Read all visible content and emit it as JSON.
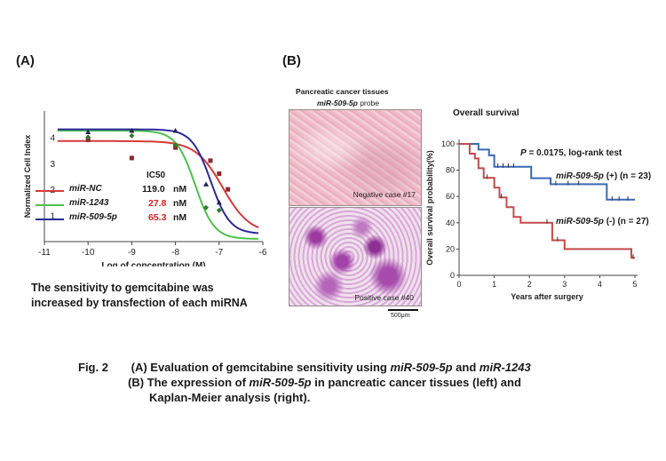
{
  "panelA": {
    "label": "(A)",
    "ylabel": "Normalized Cell Index",
    "xlabel": "Log of concentration (M)",
    "ic50_header": "IC50",
    "legend": [
      {
        "name": "miR-NC",
        "value": "119.0",
        "unit": "nM",
        "color": "#d63a3a",
        "value_color": "#1a1a1a"
      },
      {
        "name": "miR-1243",
        "value": "27.8",
        "unit": "nM",
        "color": "#4cc24c",
        "value_color": "#d62020"
      },
      {
        "name": "miR-509-5p",
        "value": "65.3",
        "unit": "nM",
        "color": "#2a2a9a",
        "value_color": "#d62020"
      }
    ],
    "note_line1": "The sensitivity to gemcitabine was",
    "note_line2": "increased by transfection of each miRNA"
  },
  "panelB": {
    "label": "(B)",
    "tissue_title": "Pancreatic cancer tissues",
    "probe_name": "miR-509-5p",
    "probe_suffix": "probe",
    "negative_label": "Negative case #17",
    "positive_label": "Positive case #40",
    "scale_bar": "500μm",
    "survival_title": "Overall survival",
    "pvalue_p": "P",
    "pvalue_rest": "= 0.0175, log-rank test",
    "km_ylabel": "Overall survival probability(%)",
    "km_xlabel": "Years after surgery",
    "group_pos_name": "miR-509-5p",
    "group_pos_rest": "(+) (n = 23)",
    "group_neg_name": "miR-509-5p",
    "group_neg_rest": "(-) (n = 27)"
  },
  "caption": {
    "fig": "Fig. 2",
    "a_prefix": "(A) Evaluation of gemcitabine sensitivity using",
    "a_m1": "miR-509-5p",
    "a_and": "and",
    "a_m2": "miR-1243",
    "b_prefix": "(B) The expression of",
    "b_m": "miR-509-5p",
    "b_rest": "in pancreatic cancer tissues (left) and",
    "b_line2": "Kaplan-Meier analysis (right)."
  },
  "chart_data": [
    {
      "type": "line",
      "x_axis": {
        "label": "Log of concentration (M)",
        "range": [
          -11,
          -6
        ],
        "ticks": [
          -11,
          -10,
          -9,
          -8,
          -7,
          -6
        ]
      },
      "y_axis": {
        "label": "Normalized Cell Index",
        "range": [
          0,
          5
        ],
        "ticks": [
          1,
          2,
          3,
          4
        ]
      },
      "series": [
        {
          "name": "miR-NC",
          "color": "#d63a3a",
          "marker": "square",
          "curve": {
            "top": 3.85,
            "bottom": 0.3,
            "log_ic50": -6.92,
            "hill": 1.4
          },
          "points": [
            {
              "x": -10,
              "y": 3.9
            },
            {
              "x": -9,
              "y": 3.2
            },
            {
              "x": -8,
              "y": 3.6
            },
            {
              "x": -7.2,
              "y": 3.1
            },
            {
              "x": -7,
              "y": 2.6
            },
            {
              "x": -6.8,
              "y": 2.0
            }
          ]
        },
        {
          "name": "miR-1243",
          "color": "#4cc24c",
          "marker": "diamond",
          "curve": {
            "top": 4.25,
            "bottom": 0.1,
            "log_ic50": -7.55,
            "hill": 2.0
          },
          "points": [
            {
              "x": -10,
              "y": 4.0
            },
            {
              "x": -9,
              "y": 4.05
            },
            {
              "x": -8,
              "y": 3.7
            },
            {
              "x": -7.3,
              "y": 1.3
            },
            {
              "x": -7,
              "y": 1.2
            }
          ]
        },
        {
          "name": "miR-509-5p",
          "color": "#2a2a9a",
          "marker": "triangle",
          "curve": {
            "top": 4.3,
            "bottom": 0.3,
            "log_ic50": -7.19,
            "hill": 2.0
          },
          "points": [
            {
              "x": -10,
              "y": 4.2
            },
            {
              "x": -9,
              "y": 4.25
            },
            {
              "x": -8,
              "y": 4.25
            },
            {
              "x": -7.3,
              "y": 2.2
            },
            {
              "x": -7,
              "y": 1.5
            }
          ]
        }
      ],
      "ic50": {
        "miR-NC": "119.0 nM",
        "miR-1243": "27.8 nM",
        "miR-509-5p": "65.3 nM"
      }
    },
    {
      "type": "line",
      "title": "Overall survival",
      "x_axis": {
        "label": "Years after surgery",
        "range": [
          0,
          5
        ],
        "ticks": [
          0,
          1,
          2,
          3,
          4,
          5
        ]
      },
      "y_axis": {
        "label": "Overall survival probability(%)",
        "range": [
          0,
          100
        ],
        "ticks": [
          0,
          20,
          40,
          60,
          80,
          100
        ]
      },
      "series": [
        {
          "name": "miR-509-5p (+) (n = 23)",
          "color": "#3a68b4",
          "steps": [
            [
              0,
              100
            ],
            [
              0.55,
              100
            ],
            [
              0.55,
              95.7
            ],
            [
              0.85,
              95.7
            ],
            [
              0.85,
              91.3
            ],
            [
              1.0,
              91.3
            ],
            [
              1.0,
              82.6
            ],
            [
              2.05,
              82.6
            ],
            [
              2.05,
              73.9
            ],
            [
              2.6,
              73.9
            ],
            [
              2.6,
              69.3
            ],
            [
              4.2,
              69.3
            ],
            [
              4.2,
              57.6
            ],
            [
              5,
              57.6
            ]
          ],
          "censors": [
            [
              1.1,
              82.6
            ],
            [
              1.25,
              82.6
            ],
            [
              1.4,
              82.6
            ],
            [
              1.55,
              82.6
            ],
            [
              2.75,
              69.3
            ],
            [
              3.1,
              69.3
            ],
            [
              3.4,
              69.3
            ],
            [
              4.35,
              57.6
            ],
            [
              4.55,
              57.6
            ],
            [
              4.8,
              57.6
            ]
          ]
        },
        {
          "name": "miR-509-5p (-) (n = 27)",
          "color": "#c44a4a",
          "steps": [
            [
              0,
              100
            ],
            [
              0.3,
              100
            ],
            [
              0.3,
              92.6
            ],
            [
              0.45,
              92.6
            ],
            [
              0.45,
              88.9
            ],
            [
              0.55,
              88.9
            ],
            [
              0.55,
              81.5
            ],
            [
              0.7,
              81.5
            ],
            [
              0.7,
              74.1
            ],
            [
              1.0,
              74.1
            ],
            [
              1.0,
              66.7
            ],
            [
              1.15,
              66.7
            ],
            [
              1.15,
              59.3
            ],
            [
              1.35,
              59.3
            ],
            [
              1.35,
              51.9
            ],
            [
              1.55,
              51.9
            ],
            [
              1.55,
              44.4
            ],
            [
              1.75,
              44.4
            ],
            [
              1.75,
              40.0
            ],
            [
              2.65,
              40.0
            ],
            [
              2.65,
              26.7
            ],
            [
              3.0,
              26.7
            ],
            [
              3.0,
              20.0
            ],
            [
              4.9,
              20.0
            ],
            [
              4.9,
              13.3
            ],
            [
              5,
              13.3
            ]
          ],
          "censors": [
            [
              0.8,
              74.1
            ],
            [
              1.2,
              59.3
            ],
            [
              2.5,
              40.0
            ],
            [
              2.8,
              26.7
            ],
            [
              4.95,
              13.3
            ]
          ]
        }
      ]
    }
  ]
}
